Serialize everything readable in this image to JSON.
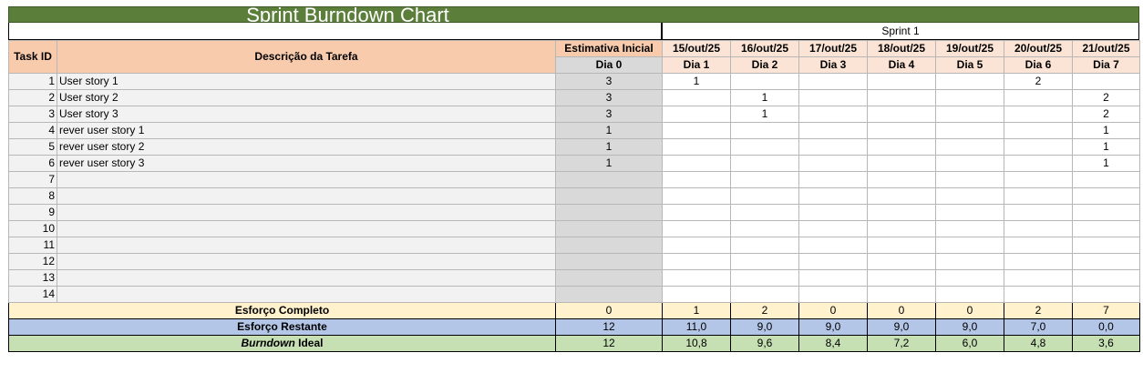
{
  "sheet": {
    "title": "Sprint Burndown Chart",
    "sprint_label": "Sprint 1",
    "headers": {
      "task_id": "Task ID",
      "description": "Descrição da Tarefa",
      "estimate": "Estimativa Inicial",
      "day0": "Dia 0"
    },
    "days": [
      {
        "date": "15/out/25",
        "label": "Dia 1"
      },
      {
        "date": "16/out/25",
        "label": "Dia 2"
      },
      {
        "date": "17/out/25",
        "label": "Dia 3"
      },
      {
        "date": "18/out/25",
        "label": "Dia 4"
      },
      {
        "date": "19/out/25",
        "label": "Dia 5"
      },
      {
        "date": "20/out/25",
        "label": "Dia 6"
      },
      {
        "date": "21/out/25",
        "label": "Dia 7"
      }
    ],
    "tasks": [
      {
        "id": "1",
        "desc": "User story 1",
        "est": "3",
        "days": [
          "1",
          "",
          "",
          "",
          "",
          "2",
          ""
        ]
      },
      {
        "id": "2",
        "desc": "User story 2",
        "est": "3",
        "days": [
          "",
          "1",
          "",
          "",
          "",
          "",
          "2"
        ]
      },
      {
        "id": "3",
        "desc": "User story 3",
        "est": "3",
        "days": [
          "",
          "1",
          "",
          "",
          "",
          "",
          "2"
        ]
      },
      {
        "id": "4",
        "desc": "rever user story 1",
        "est": "1",
        "days": [
          "",
          "",
          "",
          "",
          "",
          "",
          "1"
        ]
      },
      {
        "id": "5",
        "desc": "rever user story 2",
        "est": "1",
        "days": [
          "",
          "",
          "",
          "",
          "",
          "",
          "1"
        ]
      },
      {
        "id": "6",
        "desc": "rever  user story 3",
        "est": "1",
        "days": [
          "",
          "",
          "",
          "",
          "",
          "",
          "1"
        ]
      },
      {
        "id": "7",
        "desc": "",
        "est": "",
        "days": [
          "",
          "",
          "",
          "",
          "",
          "",
          ""
        ]
      },
      {
        "id": "8",
        "desc": "",
        "est": "",
        "days": [
          "",
          "",
          "",
          "",
          "",
          "",
          ""
        ]
      },
      {
        "id": "9",
        "desc": "",
        "est": "",
        "days": [
          "",
          "",
          "",
          "",
          "",
          "",
          ""
        ]
      },
      {
        "id": "10",
        "desc": "",
        "est": "",
        "days": [
          "",
          "",
          "",
          "",
          "",
          "",
          ""
        ]
      },
      {
        "id": "11",
        "desc": "",
        "est": "",
        "days": [
          "",
          "",
          "",
          "",
          "",
          "",
          ""
        ]
      },
      {
        "id": "12",
        "desc": "",
        "est": "",
        "days": [
          "",
          "",
          "",
          "",
          "",
          "",
          ""
        ]
      },
      {
        "id": "13",
        "desc": "",
        "est": "",
        "days": [
          "",
          "",
          "",
          "",
          "",
          "",
          ""
        ]
      },
      {
        "id": "14",
        "desc": "",
        "est": "",
        "days": [
          "",
          "",
          "",
          "",
          "",
          "",
          ""
        ]
      }
    ],
    "summary": {
      "complete": {
        "label": "Esforço Completo",
        "day0": "0",
        "values": [
          "1",
          "2",
          "0",
          "0",
          "0",
          "2",
          "7"
        ]
      },
      "remaining": {
        "label": "Esforço Restante",
        "day0": "12",
        "values": [
          "11,0",
          "9,0",
          "9,0",
          "9,0",
          "9,0",
          "7,0",
          "0,0"
        ]
      },
      "ideal": {
        "label_italic": "Burndown",
        "label_rest": " Ideal",
        "day0": "12",
        "values": [
          "10,8",
          "9,6",
          "8,4",
          "7,2",
          "6,0",
          "4,8",
          "3,6"
        ]
      }
    }
  }
}
